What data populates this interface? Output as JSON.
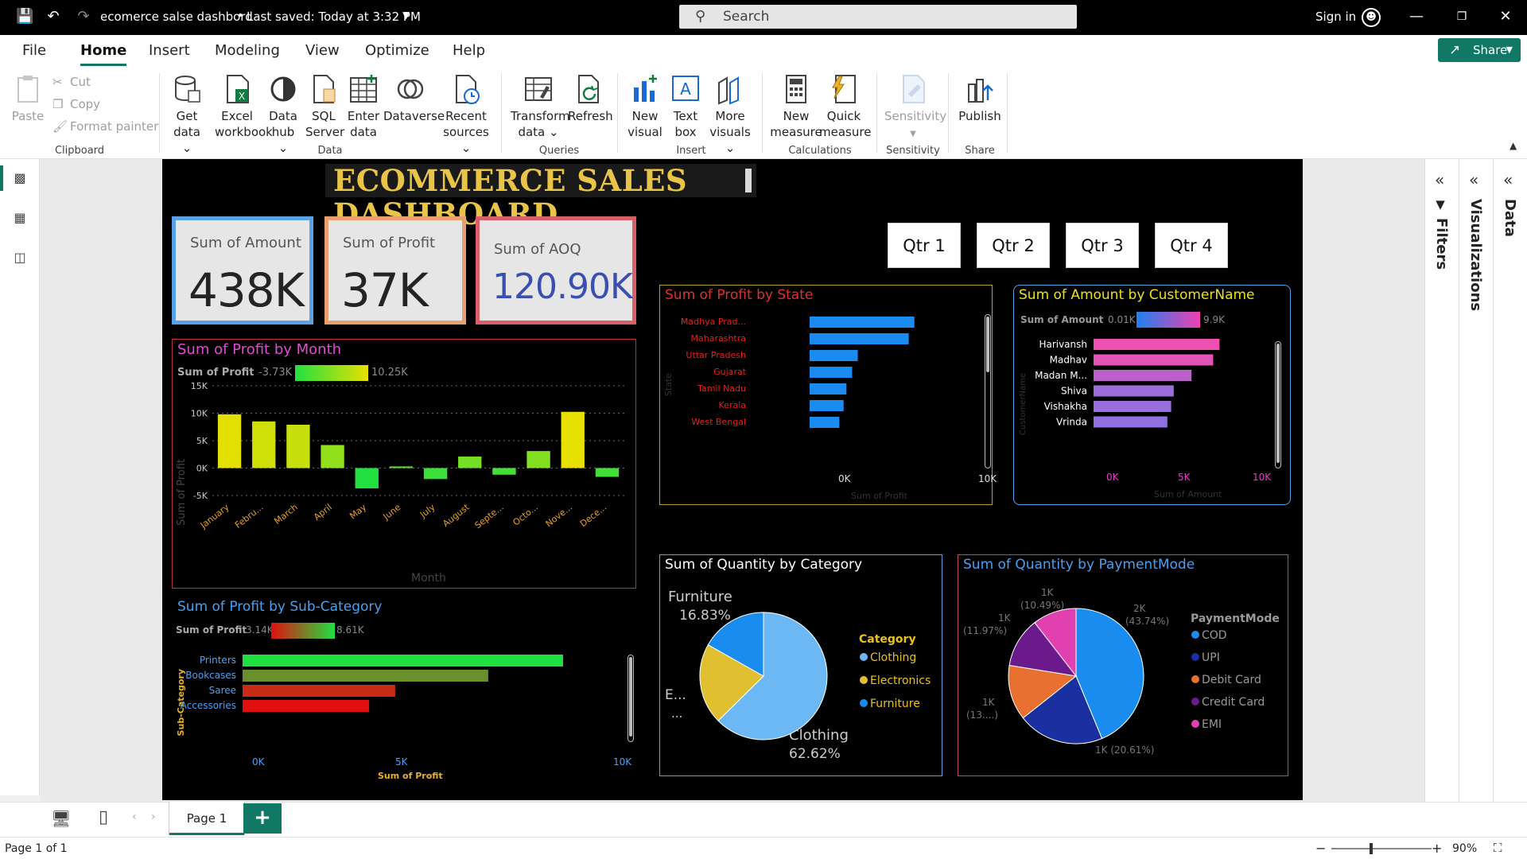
{
  "window": {
    "title": "ecomerce salse dashbord",
    "saved": "Last saved: Today at 3:32 PM",
    "search_placeholder": "Search",
    "signin": "Sign in"
  },
  "menu": [
    "File",
    "Home",
    "Insert",
    "Modeling",
    "View",
    "Optimize",
    "Help"
  ],
  "share_label": "Share",
  "ribbon": {
    "clipboard": {
      "paste": "Paste",
      "cut": "Cut",
      "copy": "Copy",
      "format_painter": "Format painter",
      "group": "Clipboard"
    },
    "data": {
      "items": [
        {
          "l1": "Get",
          "l2": "data ⌄"
        },
        {
          "l1": "Excel",
          "l2": "workbook"
        },
        {
          "l1": "Data",
          "l2": "hub ⌄"
        },
        {
          "l1": "SQL",
          "l2": "Server"
        },
        {
          "l1": "Enter",
          "l2": "data"
        },
        {
          "l1": "Dataverse",
          "l2": ""
        },
        {
          "l1": "Recent",
          "l2": "sources ⌄"
        }
      ],
      "group": "Data"
    },
    "queries": {
      "transform_l1": "Transform",
      "transform_l2": "data ⌄",
      "refresh": "Refresh",
      "group": "Queries"
    },
    "insert": {
      "new_visual_l1": "New",
      "new_visual_l2": "visual",
      "text_box_l1": "Text",
      "text_box_l2": "box",
      "more_l1": "More",
      "more_l2": "visuals ⌄",
      "group": "Insert"
    },
    "calculations": {
      "new_measure_l1": "New",
      "new_measure_l2": "measure",
      "quick_l1": "Quick",
      "quick_l2": "measure",
      "group": "Calculations"
    },
    "sensitivity": {
      "label": "Sensitivity",
      "group": "Sensitivity"
    },
    "share": {
      "publish": "Publish",
      "group": "Share"
    }
  },
  "panes": {
    "filters": "Filters",
    "visualizations": "Visualizations",
    "data": "Data"
  },
  "page_tab": "Page 1",
  "status": {
    "page": "Page 1 of 1",
    "zoom": "90%"
  },
  "dashboard": {
    "title": "ECOMMERCE SALES DASHBOARD",
    "cards": [
      {
        "label": "Sum of Amount",
        "value": "438K",
        "border": "#5aa0e8",
        "color": "#252423"
      },
      {
        "label": "Sum of Profit",
        "value": "37K",
        "border": "#e8a070",
        "color": "#252423"
      },
      {
        "label": "Sum of AOQ",
        "value": "120.90K",
        "border": "#d9606a",
        "color": "#3a4fb0"
      }
    ],
    "quarters": [
      "Qtr 1",
      "Qtr 2",
      "Qtr 3",
      "Qtr 4"
    ],
    "profit_by_month": {
      "title": "Sum of Profit by Month",
      "legend_label": "Sum of Profit",
      "legend_min": "-3.73K",
      "legend_max": "10.25K",
      "y_ticks": [
        "15K",
        "10K",
        "5K",
        "0K",
        "-5K"
      ],
      "ylabel": "Sum of Profit",
      "xlabel": "Month"
    },
    "profit_by_state": {
      "title": "Sum of Profit by State",
      "ylabel": "State",
      "xlabel": "Sum of Profit",
      "x_ticks": [
        "0K",
        "10K"
      ]
    },
    "amount_by_customer": {
      "title": "Sum of Amount by CustomerName",
      "legend_label": "Sum of Amount",
      "legend_min": "0.01K",
      "legend_max": "9.9K",
      "ylabel": "CustomerName",
      "xlabel": "Sum of Amount",
      "x_ticks": [
        "0K",
        "5K",
        "10K"
      ]
    },
    "profit_by_subcategory": {
      "title": "Sum of Profit by Sub-Category",
      "legend_label": "Sum of Profit",
      "legend_min": "3.14K",
      "legend_max": "8.61K",
      "ylabel": "Sub-Category",
      "xlabel": "Sum of Profit",
      "x_ticks": [
        "0K",
        "5K",
        "10K"
      ]
    },
    "quantity_by_category": {
      "title": "Sum of Quantity by Category",
      "legend_title": "Category",
      "slice_labels": [
        {
          "name": "Furniture",
          "pct": "16.83%"
        },
        {
          "name": "Clothing",
          "pct": "62.62%"
        },
        {
          "name": "E...",
          "pct": "..."
        }
      ]
    },
    "quantity_by_payment": {
      "title": "Sum of Quantity by PaymentMode",
      "legend_title": "PaymentMode",
      "slice_labels": [
        {
          "v": "2K",
          "p": "(43.74%)"
        },
        {
          "v": "1K (20.61%)",
          "p": ""
        },
        {
          "v": "1K",
          "p": "(13....)"
        },
        {
          "v": "1K",
          "p": "(11.97%)"
        },
        {
          "v": "1K",
          "p": "(10.49%)"
        }
      ]
    }
  },
  "chart_data": [
    {
      "type": "bar",
      "title": "Sum of Profit by Month",
      "categories": [
        "January",
        "Febru...",
        "March",
        "April",
        "May",
        "June",
        "July",
        "August",
        "Septe...",
        "Octo...",
        "Nove...",
        "Dece..."
      ],
      "values": [
        9800,
        8500,
        7900,
        4200,
        -3700,
        300,
        -2000,
        2100,
        -1200,
        3100,
        10250,
        -1600
      ],
      "ylim": [
        -5000,
        15000
      ],
      "xlabel": "Month",
      "ylabel": "Sum of Profit"
    },
    {
      "type": "bar",
      "orientation": "horizontal",
      "title": "Sum of Profit by State",
      "categories": [
        "Madhya Prad...",
        "Maharashtra",
        "Uttar Pradesh",
        "Gujarat",
        "Tamil Nadu",
        "Kerala",
        "West Bengal"
      ],
      "values": [
        7400,
        7000,
        3400,
        3000,
        2600,
        2400,
        2100
      ],
      "xlim": [
        0,
        10000
      ],
      "xlabel": "Sum of Profit",
      "ylabel": "State"
    },
    {
      "type": "bar",
      "orientation": "horizontal",
      "title": "Sum of Amount by CustomerName",
      "categories": [
        "Harivansh",
        "Madhav",
        "Madan M...",
        "Shiva",
        "Vishakha",
        "Vrinda"
      ],
      "values": [
        9900,
        9400,
        7700,
        6300,
        6100,
        5800
      ],
      "xlim": [
        0,
        10000
      ],
      "xlabel": "Sum of Amount",
      "ylabel": "CustomerName"
    },
    {
      "type": "bar",
      "orientation": "horizontal",
      "title": "Sum of Profit by Sub-Category",
      "categories": [
        "Printers",
        "Bookcases",
        "Saree",
        "Accessories"
      ],
      "values": [
        8610,
        6600,
        4100,
        3400
      ],
      "xlim": [
        0,
        10000
      ],
      "xlabel": "Sum of Profit",
      "ylabel": "Sub-Category"
    },
    {
      "type": "pie",
      "title": "Sum of Quantity by Category",
      "series": [
        {
          "name": "Clothing",
          "value": 62.62,
          "color": "#6cb8f5"
        },
        {
          "name": "Electronics",
          "value": 20.55,
          "color": "#e0c030"
        },
        {
          "name": "Furniture",
          "value": 16.83,
          "color": "#1a8cf0"
        }
      ]
    },
    {
      "type": "pie",
      "title": "Sum of Quantity by PaymentMode",
      "series": [
        {
          "name": "COD",
          "value": 43.74,
          "color": "#1a8cf0"
        },
        {
          "name": "UPI",
          "value": 20.61,
          "color": "#1a2fa0"
        },
        {
          "name": "Debit Card",
          "value": 13.19,
          "color": "#e87030"
        },
        {
          "name": "Credit Card",
          "value": 11.97,
          "color": "#6a1a8a"
        },
        {
          "name": "EMI",
          "value": 10.49,
          "color": "#e040b0"
        }
      ]
    }
  ]
}
